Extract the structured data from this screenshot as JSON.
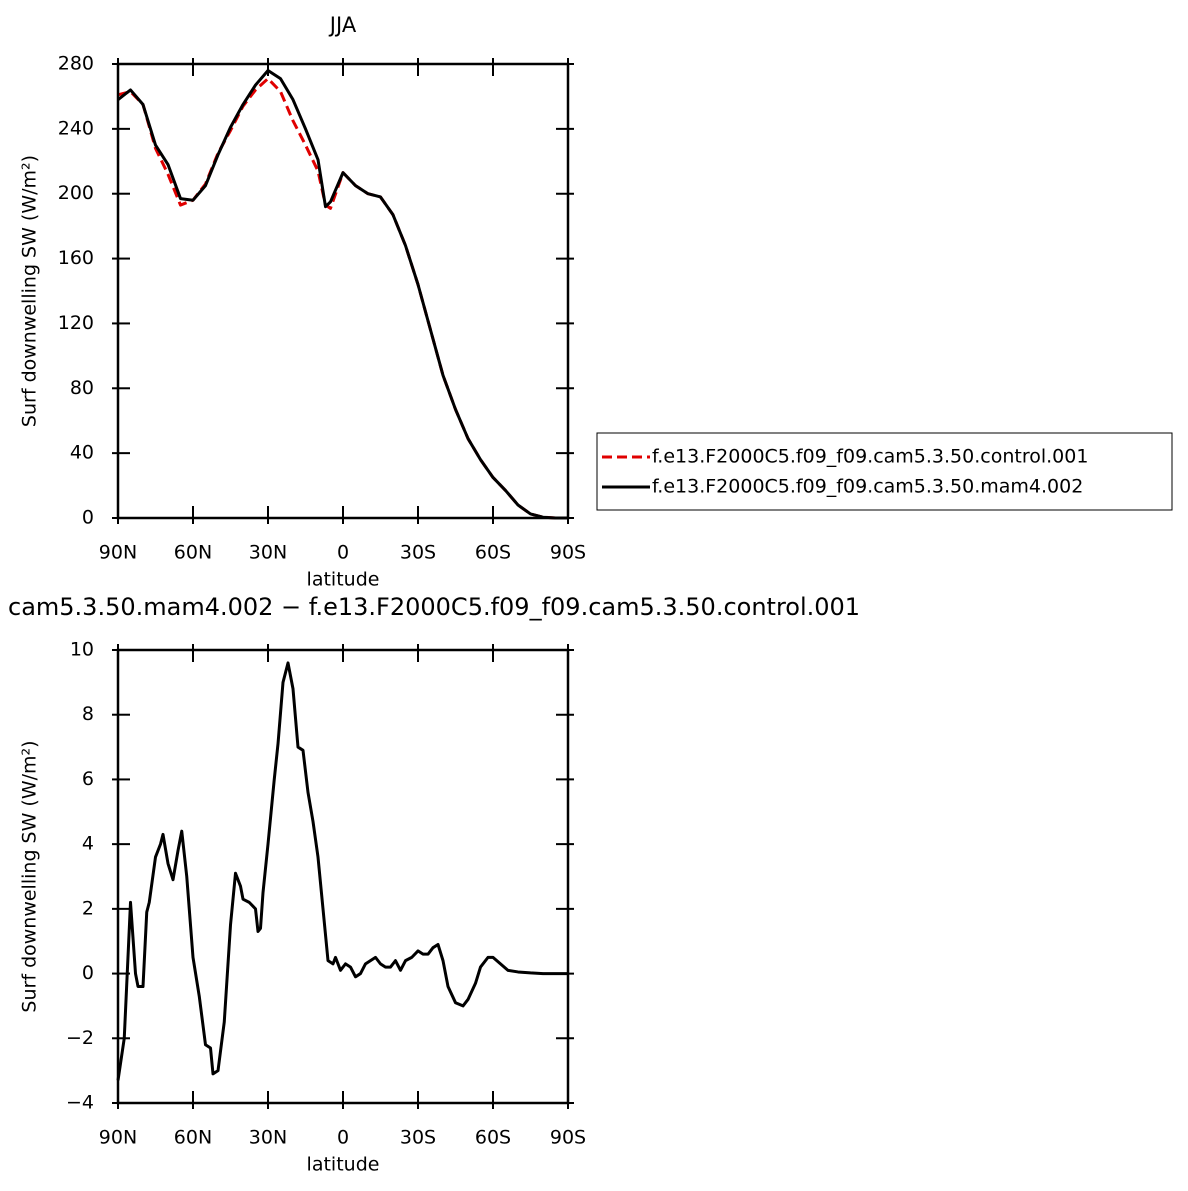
{
  "chart_data": [
    {
      "type": "line",
      "title": "JJA",
      "xlabel": "latitude",
      "ylabel": "Surf downwelling SW (W/m²)",
      "x": [
        90,
        85,
        80,
        75,
        70,
        65,
        60,
        55,
        50,
        45,
        40,
        35,
        30,
        25,
        20,
        15,
        10,
        7,
        5,
        0,
        -5,
        -10,
        -15,
        -20,
        -25,
        -30,
        -35,
        -40,
        -45,
        -50,
        -55,
        -60,
        -65,
        -70,
        -75,
        -80,
        -85,
        -90
      ],
      "series": [
        {
          "name": "f.e13.F2000C5.f09_f09.cam5.3.50.control.001",
          "color": "#e00000",
          "dashed": true,
          "values": [
            261,
            263,
            255,
            228,
            212,
            193,
            196,
            206,
            225,
            239,
            254,
            264,
            271,
            263,
            245,
            230,
            214,
            193,
            191,
            213,
            205,
            200,
            198,
            187,
            168,
            144,
            116,
            88,
            67,
            49,
            36,
            25,
            17,
            8,
            2.5,
            0.5,
            0,
            0
          ]
        },
        {
          "name": "f.e13.F2000C5.f09_f09.cam5.3.50.mam4.002",
          "color": "#000000",
          "dashed": false,
          "values": [
            258,
            264,
            255,
            230,
            218,
            197,
            196,
            205,
            224,
            241,
            255,
            267,
            276,
            271,
            258,
            240,
            221,
            192,
            195,
            213,
            205,
            200,
            198,
            187,
            168,
            144,
            116,
            88,
            67,
            49,
            36,
            25,
            17,
            8,
            2.5,
            0.5,
            0,
            0
          ]
        }
      ],
      "xlim": [
        90,
        -90
      ],
      "xticks": [
        {
          "value": 90,
          "label": "90N"
        },
        {
          "value": 60,
          "label": "60N"
        },
        {
          "value": 30,
          "label": "30N"
        },
        0,
        {
          "value": -30,
          "label": "30S"
        },
        {
          "value": -60,
          "label": "60S"
        },
        {
          "value": -90,
          "label": "90S"
        }
      ],
      "ylim": [
        0,
        280
      ],
      "yticks": [
        0,
        40,
        80,
        120,
        160,
        200,
        240,
        280
      ],
      "legend": "right"
    },
    {
      "type": "line",
      "title": "cam5.3.50.mam4.002 − f.e13.F2000C5.f09_f09.cam5.3.50.control.001",
      "xlabel": "latitude",
      "ylabel": "Surf downwelling SW (W/m²)",
      "x": [
        90,
        87.5,
        85,
        83,
        82,
        80,
        78.5,
        77.5,
        75,
        73,
        72,
        70,
        68,
        66,
        64.5,
        62.5,
        60,
        57.5,
        55,
        53,
        52,
        50,
        47.5,
        45,
        43,
        41,
        40,
        37.5,
        35,
        34,
        33,
        32,
        30,
        27.5,
        26,
        24,
        22,
        20,
        18,
        16,
        14,
        12,
        10,
        8,
        6,
        4,
        3,
        1,
        -1,
        -3,
        -5,
        -7,
        -9,
        -11,
        -13,
        -15,
        -17,
        -19,
        -21,
        -23,
        -25,
        -27.5,
        -30,
        -32,
        -34,
        -36,
        -38,
        -40,
        -42,
        -45,
        -48,
        -50,
        -53,
        -55,
        -58,
        -60,
        -63,
        -66,
        -70,
        -75,
        -80,
        -90
      ],
      "color": "#000000",
      "values": [
        -3.3,
        -2,
        2.2,
        0,
        -0.4,
        -0.4,
        1.9,
        2.2,
        3.6,
        4,
        4.3,
        3.4,
        2.9,
        3.8,
        4.4,
        3,
        0.5,
        -0.7,
        -2.2,
        -2.3,
        -3.1,
        -3,
        -1.5,
        1.5,
        3.1,
        2.7,
        2.3,
        2.2,
        2,
        1.3,
        1.4,
        2.5,
        4,
        6,
        7.1,
        9,
        9.6,
        8.8,
        7,
        6.9,
        5.6,
        4.7,
        3.6,
        2,
        0.4,
        0.3,
        0.5,
        0.1,
        0.3,
        0.2,
        -0.1,
        0,
        0.3,
        0.4,
        0.5,
        0.3,
        0.2,
        0.2,
        0.4,
        0.1,
        0.4,
        0.5,
        0.7,
        0.6,
        0.6,
        0.8,
        0.9,
        0.4,
        -0.4,
        -0.9,
        -1,
        -0.8,
        -0.3,
        0.2,
        0.5,
        0.5,
        0.3,
        0.1,
        0.05,
        0.02,
        0,
        0
      ],
      "xlim": [
        90,
        -90
      ],
      "xticks": [
        {
          "value": 90,
          "label": "90N"
        },
        {
          "value": 60,
          "label": "60N"
        },
        {
          "value": 30,
          "label": "30N"
        },
        0,
        {
          "value": -30,
          "label": "30S"
        },
        {
          "value": -60,
          "label": "60S"
        },
        {
          "value": -90,
          "label": "90S"
        }
      ],
      "ylim": [
        -4,
        10
      ],
      "yticks": [
        {
          "value": -4,
          "label": "−4"
        },
        {
          "value": -2,
          "label": "−2"
        },
        0,
        2,
        4,
        6,
        8,
        10
      ]
    }
  ]
}
